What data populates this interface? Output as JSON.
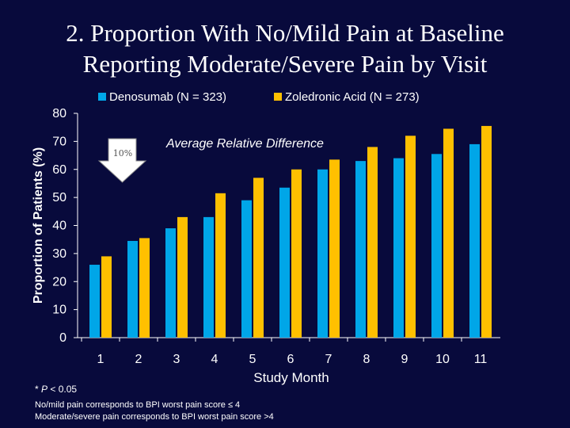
{
  "slide": {
    "title_line1": "2. Proportion With No/Mild Pain at Baseline",
    "title_line2": "Reporting Moderate/Severe Pain by Visit"
  },
  "chart_data": {
    "type": "bar",
    "title": "",
    "xlabel": "Study Month",
    "ylabel": "Proportion of Patients (%)",
    "ylim": [
      0,
      80
    ],
    "yticks": [
      0,
      10,
      20,
      30,
      40,
      50,
      60,
      70,
      80
    ],
    "categories": [
      "1",
      "2",
      "3",
      "4",
      "5",
      "6",
      "7",
      "8",
      "9",
      "10",
      "11"
    ],
    "series": [
      {
        "name": "Denosumab (N = 323)",
        "color": "#00a6e8",
        "values": [
          26,
          34.5,
          39,
          43,
          49,
          53.5,
          60,
          63,
          64,
          65.5,
          69
        ]
      },
      {
        "name": "Zoledronic Acid (N = 273)",
        "color": "#ffc000",
        "values": [
          29,
          35.5,
          43,
          51.5,
          57,
          60,
          63.5,
          68,
          72,
          74.5,
          75.5
        ]
      }
    ],
    "legend_position": "top",
    "grid": false,
    "annotations": {
      "relative_difference_label": "Average Relative Difference",
      "relative_difference_value": "10%"
    }
  },
  "footnotes": {
    "significance_prefix": "* ",
    "significance_p": "P",
    "significance_rest": " < 0.05",
    "no_mild_definition": "No/mild pain corresponds to BPI worst pain score ≤ 4",
    "moderate_severe_definition": "Moderate/severe pain corresponds to BPI worst pain score >4"
  }
}
